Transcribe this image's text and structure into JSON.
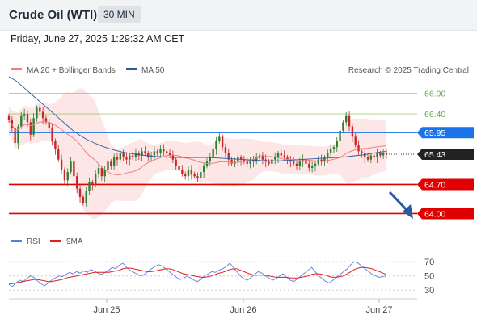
{
  "header": {
    "title": "Crude Oil (WTI)",
    "timeframe": "30 MIN"
  },
  "date_line": "Friday, June 27, 2025 1:29:32 AM CET",
  "legend": {
    "ma20": "MA 20 + Bollinger Bands",
    "ma50": "MA 50",
    "copyright": "Research © 2025 Trading Central"
  },
  "rsi_legend": {
    "rsi": "RSI",
    "ma9": "9MA"
  },
  "colors": {
    "ma20": "#f08080",
    "ma50": "#2c5aa0",
    "bull": "#2e7d32",
    "bear": "#c62828",
    "rsi": "#5b7fd6",
    "ma9": "#e02020",
    "green_level": "#8bc34a",
    "blue_level": "#1a73e8",
    "red_level": "#e00000"
  },
  "chart_data": [
    {
      "type": "candlestick",
      "x_ticks": [
        "Jun 25",
        "Jun 26",
        "Jun 27"
      ],
      "y_range": [
        63.6,
        67.2
      ],
      "price_labels": [
        {
          "value": 66.9,
          "label": "66.90",
          "style": "green-text"
        },
        {
          "value": 66.4,
          "label": "66.40",
          "style": "green-text"
        },
        {
          "value": 65.95,
          "label": "65.95",
          "style": "blue-tag"
        },
        {
          "value": 65.43,
          "label": "65.43",
          "style": "dark-tag"
        },
        {
          "value": 64.7,
          "label": "64.70",
          "style": "red-tag"
        },
        {
          "value": 64.0,
          "label": "64.00",
          "style": "red-tag"
        }
      ],
      "horizontal_lines": [
        {
          "value": 66.9,
          "color": "green"
        },
        {
          "value": 66.4,
          "color": "green"
        },
        {
          "value": 65.95,
          "color": "blue"
        },
        {
          "value": 64.7,
          "color": "red"
        },
        {
          "value": 64.0,
          "color": "red"
        }
      ],
      "close_series": [
        66.25,
        66.05,
        65.7,
        66.1,
        66.35,
        66.4,
        66.2,
        65.9,
        66.3,
        66.55,
        66.45,
        66.3,
        66.2,
        66.05,
        65.75,
        65.55,
        65.3,
        65.05,
        64.8,
        65.0,
        65.25,
        64.9,
        64.6,
        64.4,
        64.25,
        64.55,
        64.75,
        64.7,
        64.95,
        65.1,
        64.9,
        65.05,
        65.25,
        65.15,
        65.35,
        65.3,
        65.45,
        65.35,
        65.3,
        65.4,
        65.35,
        65.45,
        65.4,
        65.5,
        65.45,
        65.35,
        65.4,
        65.5,
        65.45,
        65.55,
        65.5,
        65.45,
        65.4,
        65.3,
        65.15,
        65.05,
        64.95,
        64.9,
        65.05,
        64.95,
        64.9,
        64.85,
        65.0,
        65.15,
        65.25,
        65.35,
        65.55,
        65.75,
        65.85,
        65.6,
        65.45,
        65.3,
        65.2,
        65.25,
        65.35,
        65.3,
        65.25,
        65.2,
        65.3,
        65.25,
        65.35,
        65.4,
        65.3,
        65.25,
        65.2,
        65.3,
        65.35,
        65.45,
        65.4,
        65.35,
        65.3,
        65.25,
        65.2,
        65.15,
        65.25,
        65.3,
        65.2,
        65.1,
        65.15,
        65.2,
        65.3,
        65.25,
        65.35,
        65.45,
        65.55,
        65.6,
        65.75,
        66.0,
        66.2,
        66.35,
        66.1,
        65.85,
        65.65,
        65.5,
        65.45,
        65.35,
        65.3,
        65.4,
        65.35,
        65.45,
        65.4,
        65.45,
        65.43
      ],
      "ma50_series": [
        67.3,
        67.2,
        67.05,
        66.9,
        66.75,
        66.6,
        66.45,
        66.3,
        66.15,
        66.0,
        65.88,
        65.78,
        65.7,
        65.63,
        65.57,
        65.52,
        65.48,
        65.45,
        65.42,
        65.4,
        65.38,
        65.37,
        65.36,
        65.35,
        65.35,
        65.35,
        65.35,
        65.35,
        65.35,
        65.34,
        65.33,
        65.32,
        65.31,
        65.3,
        65.29,
        65.28,
        65.27,
        65.27,
        65.27,
        65.28,
        65.29,
        65.3,
        65.31,
        65.32,
        65.33,
        65.34,
        65.35,
        65.36,
        65.38,
        65.4,
        65.42,
        65.45,
        65.48,
        65.5
      ],
      "rsi_panel": {
        "y_ticks": [
          70,
          50,
          30
        ],
        "rsi_series": [
          38,
          35,
          40,
          44,
          42,
          46,
          50,
          48,
          43,
          39,
          36,
          40,
          44,
          47,
          50,
          49,
          52,
          55,
          53,
          56,
          54,
          57,
          55,
          59,
          57,
          54,
          52,
          55,
          58,
          62,
          60,
          65,
          68,
          62,
          58,
          55,
          53,
          50,
          52,
          56,
          60,
          63,
          66,
          64,
          60,
          56,
          52,
          48,
          45,
          46,
          50,
          47,
          44,
          42,
          46,
          50,
          53,
          56,
          55,
          58,
          60,
          63,
          68,
          62,
          56,
          50,
          46,
          44,
          48,
          52,
          56,
          54,
          50,
          47,
          44,
          46,
          50,
          53,
          48,
          44,
          42,
          46,
          50,
          54,
          58,
          62,
          56,
          50,
          46,
          42,
          40,
          44,
          48,
          52,
          56,
          60,
          66,
          70,
          68,
          64,
          60,
          56,
          52,
          50,
          48,
          49,
          50
        ],
        "ma9_series": [
          39,
          39,
          40,
          41,
          42,
          43,
          44,
          45,
          45,
          44,
          43,
          42,
          42,
          43,
          44,
          45,
          47,
          48,
          49,
          50,
          51,
          52,
          53,
          54,
          55,
          55,
          55,
          55,
          55,
          56,
          57,
          58,
          60,
          61,
          61,
          60,
          59,
          58,
          57,
          56,
          56,
          57,
          58,
          59,
          60,
          60,
          59,
          57,
          55,
          53,
          52,
          51,
          50,
          49,
          48,
          48,
          49,
          50,
          52,
          54,
          55,
          57,
          59,
          60,
          60,
          58,
          56,
          54,
          52,
          51,
          51,
          51,
          51,
          50,
          49,
          48,
          48,
          48,
          48,
          47,
          47,
          47,
          48,
          49,
          50,
          52,
          53,
          53,
          52,
          51,
          49,
          48,
          48,
          49,
          50,
          53,
          56,
          59,
          61,
          62,
          62,
          61,
          60,
          58,
          56,
          54,
          52
        ]
      }
    }
  ]
}
